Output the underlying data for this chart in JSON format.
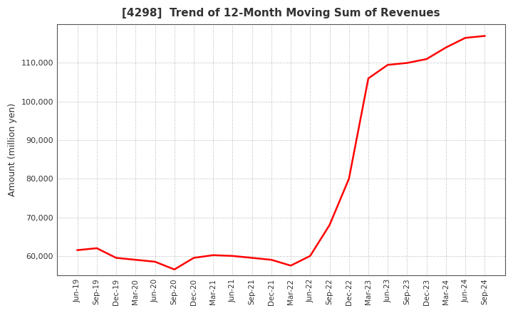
{
  "title": "[4298]  Trend of 12-Month Moving Sum of Revenues",
  "ylabel": "Amount (million yen)",
  "line_color": "#FF0000",
  "background_color": "#FFFFFF",
  "grid_color": "#999999",
  "ylim": [
    55000,
    120000
  ],
  "yticks": [
    60000,
    70000,
    80000,
    90000,
    100000,
    110000
  ],
  "dates": [
    "Jun-19",
    "Sep-19",
    "Dec-19",
    "Mar-20",
    "Jun-20",
    "Sep-20",
    "Dec-20",
    "Mar-21",
    "Jun-21",
    "Sep-21",
    "Dec-21",
    "Mar-22",
    "Jun-22",
    "Sep-22",
    "Dec-22",
    "Mar-23",
    "Jun-23",
    "Sep-23",
    "Dec-23",
    "Mar-24",
    "Jun-24",
    "Sep-24"
  ],
  "values": [
    61500,
    62000,
    59500,
    59000,
    58500,
    56500,
    59500,
    60200,
    60000,
    59500,
    59000,
    57500,
    60000,
    68000,
    80000,
    106000,
    109500,
    110000,
    111000,
    114000,
    116500,
    117000
  ],
  "title_color": "#333333",
  "tick_color": "#333333"
}
